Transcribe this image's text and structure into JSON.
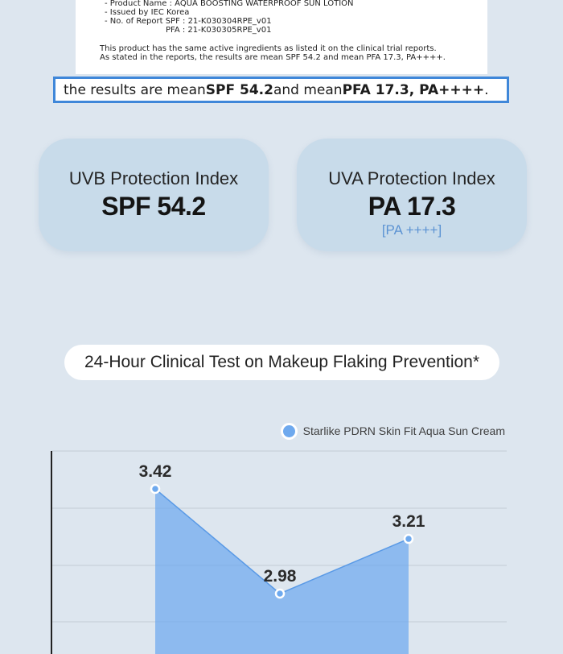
{
  "document": {
    "lines": [
      "- Product Name : AQUA BOOSTING WATERPROOF SUN LOTION",
      "- Issued by IEC Korea",
      "- No. of Report   SPF   :   21-K030304RPE_v01",
      "PFA   :   21-K030305RPE_v01",
      "This product has the same active ingredients as listed it on the clinical trial reports.",
      "As stated in the reports, the results are mean SPF 54.2 and mean PFA 17.3, PA++++."
    ]
  },
  "highlight": {
    "prefix": "the results are mean ",
    "spf": "SPF 54.2",
    "middle": " and mean ",
    "pfa": "PFA 17.3, PA++++",
    "suffix": "."
  },
  "uvb": {
    "label": "UVB Protection Index",
    "value": "SPF 54.2"
  },
  "uva": {
    "label": "UVA Protection Index",
    "value": "PA 17.3",
    "sub": "[PA ++++]"
  },
  "test_title": "24-Hour Clinical Test on Makeup Flaking Prevention*",
  "chart_data": {
    "type": "area",
    "series": [
      {
        "name": "Starlike PDRN Skin Fit Aqua Sun Cream",
        "values": [
          3.42,
          2.98,
          3.21
        ]
      }
    ],
    "data_labels": [
      "3.42",
      "2.98",
      "3.21"
    ],
    "color": "#6ea9ee",
    "grid": true,
    "legend": "top-right"
  }
}
